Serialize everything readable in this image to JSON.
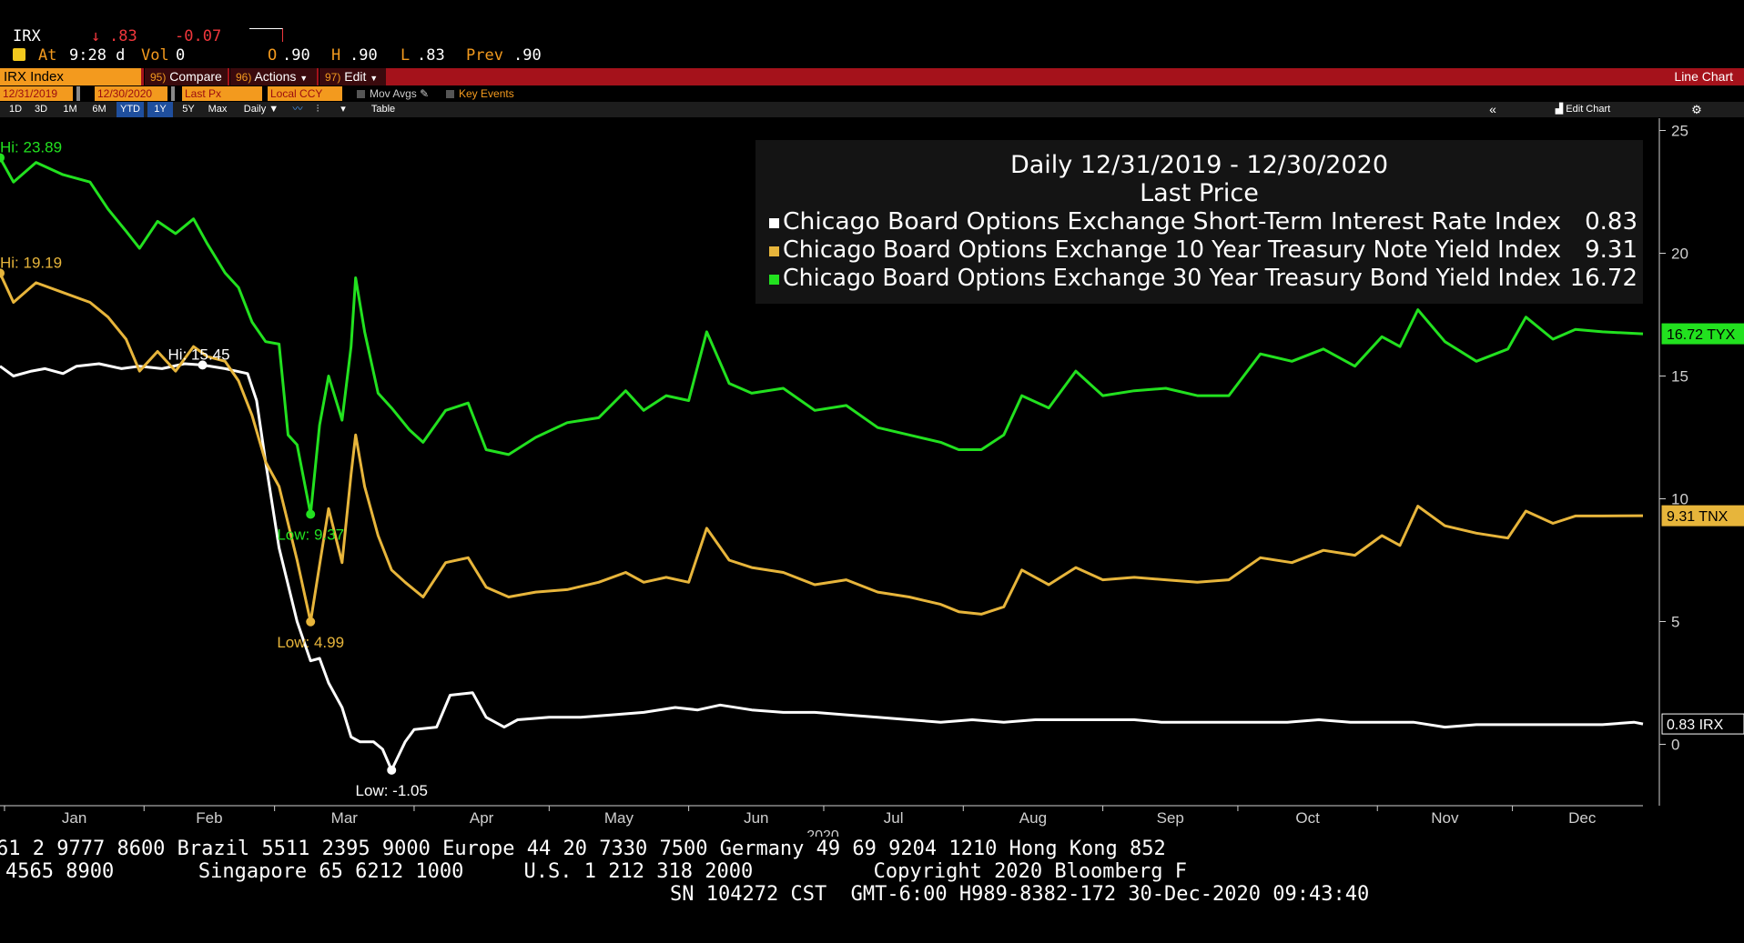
{
  "quote": {
    "ticker": "IRX",
    "arrow": "↓",
    "last": ".83",
    "change": "-0.07",
    "icon": "yellow-square-icon",
    "at_label": "At",
    "time": "9:28 d",
    "vol_label": "Vol",
    "vol": "0",
    "open_label": "O",
    "open": ".90",
    "high_label": "H",
    "high": ".90",
    "low_label": "L",
    "low": ".83",
    "prev_label": "Prev",
    "prev": ".90"
  },
  "toolbar": {
    "security": "IRX Index",
    "compare_num": "95)",
    "compare": "Compare",
    "actions_num": "96)",
    "actions": "Actions",
    "edit_num": "97)",
    "edit": "Edit",
    "chart_type": "Line Chart",
    "start_date": "12/31/2019",
    "end_date": "12/30/2020",
    "field": "Last Px",
    "currency": "Local CCY",
    "mov_avgs": "Mov Avgs",
    "key_events": "Key Events",
    "periods": [
      "1D",
      "3D",
      "1M",
      "6M",
      "YTD",
      "1Y",
      "5Y",
      "Max"
    ],
    "frequency": "Daily ▼",
    "table": "Table",
    "collapse": "«",
    "edit_chart": "Edit Chart",
    "settings_icon": "gear-icon"
  },
  "colors": {
    "irx": "#ffffff",
    "tnx": "#e7b53b",
    "tyx": "#22e11f",
    "orange": "#f39a1e",
    "red": "#a5121b",
    "quote_red": "#f0373c"
  },
  "chart_data": {
    "type": "line",
    "legend": {
      "title": "Daily 12/31/2019 - 12/30/2020",
      "subtitle": "Last Price",
      "placement": "top-right",
      "entries": [
        {
          "name": "Chicago Board Options Exchange Short-Term Interest Rate Index",
          "value": "0.83",
          "color": "#ffffff"
        },
        {
          "name": "Chicago Board Options Exchange 10 Year Treasury Note Yield Index",
          "value": "9.31",
          "color": "#e7b53b"
        },
        {
          "name": "Chicago Board Options Exchange 30 Year Treasury Bond Yield Index",
          "value": "16.72",
          "color": "#22e11f"
        }
      ]
    },
    "y_axis": {
      "side": "right",
      "range": [
        -2.5,
        25.5
      ],
      "ticks": [
        0,
        5,
        10,
        15,
        20,
        25
      ]
    },
    "x_axis": {
      "range": [
        "2019-12-31",
        "2020-12-30"
      ],
      "months": [
        "Jan",
        "Feb",
        "Mar",
        "Apr",
        "May",
        "Jun",
        "Jul",
        "Aug",
        "Sep",
        "Oct",
        "Nov",
        "Dec"
      ],
      "year": "2020"
    },
    "grid": false,
    "series": [
      {
        "key": "irx",
        "tag": "0.83 IRX",
        "last": 0.83,
        "points": [
          [
            "2019-12-31",
            15.4
          ],
          [
            "2020-01-03",
            15.0
          ],
          [
            "2020-01-07",
            15.2
          ],
          [
            "2020-01-10",
            15.3
          ],
          [
            "2020-01-14",
            15.1
          ],
          [
            "2020-01-17",
            15.4
          ],
          [
            "2020-01-22",
            15.5
          ],
          [
            "2020-01-27",
            15.3
          ],
          [
            "2020-01-31",
            15.4
          ],
          [
            "2020-02-05",
            15.3
          ],
          [
            "2020-02-10",
            15.5
          ],
          [
            "2020-02-14",
            15.45
          ],
          [
            "2020-02-19",
            15.3
          ],
          [
            "2020-02-24",
            15.1
          ],
          [
            "2020-02-26",
            14.0
          ],
          [
            "2020-02-28",
            11.5
          ],
          [
            "2020-03-02",
            8.0
          ],
          [
            "2020-03-04",
            6.5
          ],
          [
            "2020-03-06",
            5.0
          ],
          [
            "2020-03-09",
            3.4
          ],
          [
            "2020-03-11",
            3.5
          ],
          [
            "2020-03-13",
            2.5
          ],
          [
            "2020-03-16",
            1.5
          ],
          [
            "2020-03-18",
            0.3
          ],
          [
            "2020-03-20",
            0.1
          ],
          [
            "2020-03-23",
            0.1
          ],
          [
            "2020-03-25",
            -0.2
          ],
          [
            "2020-03-27",
            -1.05
          ],
          [
            "2020-03-30",
            0.1
          ],
          [
            "2020-04-01",
            0.6
          ],
          [
            "2020-04-06",
            0.7
          ],
          [
            "2020-04-09",
            2.0
          ],
          [
            "2020-04-14",
            2.1
          ],
          [
            "2020-04-17",
            1.1
          ],
          [
            "2020-04-21",
            0.7
          ],
          [
            "2020-04-24",
            1.0
          ],
          [
            "2020-05-01",
            1.1
          ],
          [
            "2020-05-08",
            1.1
          ],
          [
            "2020-05-15",
            1.2
          ],
          [
            "2020-05-22",
            1.3
          ],
          [
            "2020-05-29",
            1.5
          ],
          [
            "2020-06-03",
            1.4
          ],
          [
            "2020-06-08",
            1.6
          ],
          [
            "2020-06-15",
            1.4
          ],
          [
            "2020-06-22",
            1.3
          ],
          [
            "2020-06-29",
            1.3
          ],
          [
            "2020-07-06",
            1.2
          ],
          [
            "2020-07-13",
            1.1
          ],
          [
            "2020-07-20",
            1.0
          ],
          [
            "2020-07-27",
            0.9
          ],
          [
            "2020-08-03",
            1.0
          ],
          [
            "2020-08-10",
            0.9
          ],
          [
            "2020-08-17",
            1.0
          ],
          [
            "2020-08-24",
            1.0
          ],
          [
            "2020-08-31",
            1.0
          ],
          [
            "2020-09-08",
            1.0
          ],
          [
            "2020-09-14",
            0.9
          ],
          [
            "2020-09-21",
            0.9
          ],
          [
            "2020-09-28",
            0.9
          ],
          [
            "2020-10-05",
            0.9
          ],
          [
            "2020-10-12",
            0.9
          ],
          [
            "2020-10-19",
            1.0
          ],
          [
            "2020-10-26",
            0.9
          ],
          [
            "2020-11-02",
            0.9
          ],
          [
            "2020-11-09",
            0.9
          ],
          [
            "2020-11-16",
            0.7
          ],
          [
            "2020-11-23",
            0.8
          ],
          [
            "2020-11-30",
            0.8
          ],
          [
            "2020-12-07",
            0.8
          ],
          [
            "2020-12-14",
            0.8
          ],
          [
            "2020-12-21",
            0.8
          ],
          [
            "2020-12-28",
            0.9
          ],
          [
            "2020-12-30",
            0.83
          ]
        ],
        "annotations": [
          {
            "label": "Hi: 15.45",
            "date": "2020-02-14",
            "value": 15.45,
            "pos": "above"
          },
          {
            "label": "Low: -1.05",
            "date": "2020-03-27",
            "value": -1.05,
            "pos": "below"
          }
        ]
      },
      {
        "key": "tnx",
        "tag": "9.31 TNX",
        "last": 9.31,
        "points": [
          [
            "2019-12-31",
            19.19
          ],
          [
            "2020-01-03",
            18.0
          ],
          [
            "2020-01-08",
            18.8
          ],
          [
            "2020-01-14",
            18.4
          ],
          [
            "2020-01-20",
            18.0
          ],
          [
            "2020-01-24",
            17.4
          ],
          [
            "2020-01-28",
            16.5
          ],
          [
            "2020-01-31",
            15.2
          ],
          [
            "2020-02-04",
            16.0
          ],
          [
            "2020-02-08",
            15.2
          ],
          [
            "2020-02-12",
            16.2
          ],
          [
            "2020-02-15",
            15.8
          ],
          [
            "2020-02-19",
            15.6
          ],
          [
            "2020-02-22",
            14.8
          ],
          [
            "2020-02-25",
            13.4
          ],
          [
            "2020-02-28",
            11.5
          ],
          [
            "2020-03-02",
            10.5
          ],
          [
            "2020-03-04",
            9.0
          ],
          [
            "2020-03-06",
            7.5
          ],
          [
            "2020-03-09",
            4.99
          ],
          [
            "2020-03-11",
            7.3
          ],
          [
            "2020-03-13",
            9.6
          ],
          [
            "2020-03-16",
            7.4
          ],
          [
            "2020-03-18",
            11.0
          ],
          [
            "2020-03-19",
            12.6
          ],
          [
            "2020-03-21",
            10.5
          ],
          [
            "2020-03-24",
            8.5
          ],
          [
            "2020-03-27",
            7.1
          ],
          [
            "2020-03-30",
            6.6
          ],
          [
            "2020-04-03",
            6.0
          ],
          [
            "2020-04-08",
            7.4
          ],
          [
            "2020-04-13",
            7.6
          ],
          [
            "2020-04-17",
            6.4
          ],
          [
            "2020-04-22",
            6.0
          ],
          [
            "2020-04-28",
            6.2
          ],
          [
            "2020-05-05",
            6.3
          ],
          [
            "2020-05-12",
            6.6
          ],
          [
            "2020-05-18",
            7.0
          ],
          [
            "2020-05-22",
            6.6
          ],
          [
            "2020-05-27",
            6.8
          ],
          [
            "2020-06-01",
            6.6
          ],
          [
            "2020-06-05",
            8.8
          ],
          [
            "2020-06-10",
            7.5
          ],
          [
            "2020-06-15",
            7.2
          ],
          [
            "2020-06-22",
            7.0
          ],
          [
            "2020-06-29",
            6.5
          ],
          [
            "2020-07-06",
            6.7
          ],
          [
            "2020-07-13",
            6.2
          ],
          [
            "2020-07-20",
            6.0
          ],
          [
            "2020-07-27",
            5.7
          ],
          [
            "2020-07-31",
            5.4
          ],
          [
            "2020-08-05",
            5.3
          ],
          [
            "2020-08-10",
            5.6
          ],
          [
            "2020-08-14",
            7.1
          ],
          [
            "2020-08-20",
            6.5
          ],
          [
            "2020-08-26",
            7.2
          ],
          [
            "2020-09-01",
            6.7
          ],
          [
            "2020-09-08",
            6.8
          ],
          [
            "2020-09-15",
            6.7
          ],
          [
            "2020-09-22",
            6.6
          ],
          [
            "2020-09-29",
            6.7
          ],
          [
            "2020-10-06",
            7.6
          ],
          [
            "2020-10-13",
            7.4
          ],
          [
            "2020-10-20",
            7.9
          ],
          [
            "2020-10-27",
            7.7
          ],
          [
            "2020-11-02",
            8.5
          ],
          [
            "2020-11-06",
            8.1
          ],
          [
            "2020-11-10",
            9.7
          ],
          [
            "2020-11-16",
            8.9
          ],
          [
            "2020-11-23",
            8.6
          ],
          [
            "2020-11-30",
            8.4
          ],
          [
            "2020-12-04",
            9.5
          ],
          [
            "2020-12-10",
            9.0
          ],
          [
            "2020-12-15",
            9.3
          ],
          [
            "2020-12-21",
            9.3
          ],
          [
            "2020-12-30",
            9.31
          ]
        ],
        "annotations": [
          {
            "label": "Hi: 19.19",
            "date": "2019-12-31",
            "value": 19.19,
            "pos": "above-right"
          },
          {
            "label": "Low: 4.99",
            "date": "2020-03-09",
            "value": 4.99,
            "pos": "below"
          }
        ]
      },
      {
        "key": "tyx",
        "tag": "16.72 TYX",
        "last": 16.72,
        "points": [
          [
            "2019-12-31",
            23.89
          ],
          [
            "2020-01-03",
            22.9
          ],
          [
            "2020-01-08",
            23.7
          ],
          [
            "2020-01-14",
            23.2
          ],
          [
            "2020-01-20",
            22.9
          ],
          [
            "2020-01-24",
            21.8
          ],
          [
            "2020-01-28",
            20.9
          ],
          [
            "2020-01-31",
            20.2
          ],
          [
            "2020-02-04",
            21.3
          ],
          [
            "2020-02-08",
            20.8
          ],
          [
            "2020-02-12",
            21.4
          ],
          [
            "2020-02-15",
            20.4
          ],
          [
            "2020-02-19",
            19.2
          ],
          [
            "2020-02-22",
            18.6
          ],
          [
            "2020-02-25",
            17.2
          ],
          [
            "2020-02-28",
            16.4
          ],
          [
            "2020-03-02",
            16.3
          ],
          [
            "2020-03-04",
            12.6
          ],
          [
            "2020-03-06",
            12.2
          ],
          [
            "2020-03-09",
            9.37
          ],
          [
            "2020-03-11",
            13.0
          ],
          [
            "2020-03-13",
            15.0
          ],
          [
            "2020-03-16",
            13.2
          ],
          [
            "2020-03-18",
            16.2
          ],
          [
            "2020-03-19",
            19.0
          ],
          [
            "2020-03-21",
            16.8
          ],
          [
            "2020-03-24",
            14.3
          ],
          [
            "2020-03-27",
            13.7
          ],
          [
            "2020-03-31",
            12.8
          ],
          [
            "2020-04-03",
            12.3
          ],
          [
            "2020-04-08",
            13.6
          ],
          [
            "2020-04-13",
            13.9
          ],
          [
            "2020-04-17",
            12.0
          ],
          [
            "2020-04-22",
            11.8
          ],
          [
            "2020-04-28",
            12.5
          ],
          [
            "2020-05-05",
            13.1
          ],
          [
            "2020-05-12",
            13.3
          ],
          [
            "2020-05-18",
            14.4
          ],
          [
            "2020-05-22",
            13.6
          ],
          [
            "2020-05-27",
            14.2
          ],
          [
            "2020-06-01",
            14.0
          ],
          [
            "2020-06-05",
            16.8
          ],
          [
            "2020-06-10",
            14.7
          ],
          [
            "2020-06-15",
            14.3
          ],
          [
            "2020-06-22",
            14.5
          ],
          [
            "2020-06-29",
            13.6
          ],
          [
            "2020-07-06",
            13.8
          ],
          [
            "2020-07-13",
            12.9
          ],
          [
            "2020-07-20",
            12.6
          ],
          [
            "2020-07-27",
            12.3
          ],
          [
            "2020-07-31",
            12.0
          ],
          [
            "2020-08-05",
            12.0
          ],
          [
            "2020-08-10",
            12.6
          ],
          [
            "2020-08-14",
            14.2
          ],
          [
            "2020-08-20",
            13.7
          ],
          [
            "2020-08-26",
            15.2
          ],
          [
            "2020-09-01",
            14.2
          ],
          [
            "2020-09-08",
            14.4
          ],
          [
            "2020-09-15",
            14.5
          ],
          [
            "2020-09-22",
            14.2
          ],
          [
            "2020-09-29",
            14.2
          ],
          [
            "2020-10-06",
            15.9
          ],
          [
            "2020-10-13",
            15.6
          ],
          [
            "2020-10-20",
            16.1
          ],
          [
            "2020-10-27",
            15.4
          ],
          [
            "2020-11-02",
            16.6
          ],
          [
            "2020-11-06",
            16.2
          ],
          [
            "2020-11-10",
            17.7
          ],
          [
            "2020-11-16",
            16.4
          ],
          [
            "2020-11-23",
            15.6
          ],
          [
            "2020-11-30",
            16.1
          ],
          [
            "2020-12-04",
            17.4
          ],
          [
            "2020-12-10",
            16.5
          ],
          [
            "2020-12-15",
            16.9
          ],
          [
            "2020-12-21",
            16.8
          ],
          [
            "2020-12-30",
            16.72
          ]
        ],
        "annotations": [
          {
            "label": "Hi: 23.89",
            "date": "2019-12-31",
            "value": 23.89,
            "pos": "above-right"
          },
          {
            "label": "Low: 9.37",
            "date": "2020-03-09",
            "value": 9.37,
            "pos": "below"
          }
        ]
      }
    ]
  },
  "footer": {
    "line1": "61 2 9777 8600 Brazil 5511 2395 9000 Europe 44 20 7330 7500 Germany 49 69 9204 1210 Hong Kong 852",
    "line2": "4565 8900       Singapore 65 6212 1000     U.S. 1 212 318 2000          Copyright 2020 Bloomberg F",
    "line3": "SN 104272 CST  GMT-6:00 H989-8382-172 30-Dec-2020 09:43:40"
  }
}
